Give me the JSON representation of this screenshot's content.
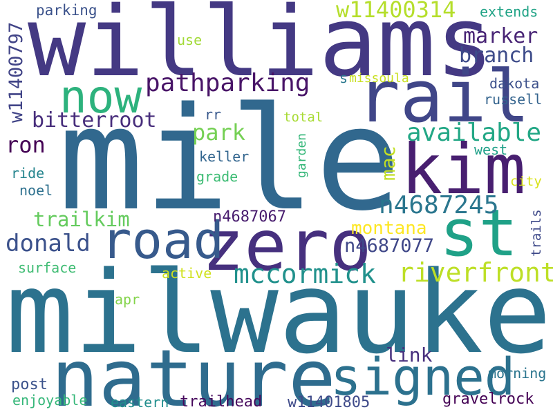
{
  "words": [
    {
      "text": "mile",
      "color": "#31688e"
    },
    {
      "text": "milwaukee",
      "color": "#2c728e"
    },
    {
      "text": "williams",
      "color": "#443983"
    },
    {
      "text": "nature",
      "color": "#2f6c8e"
    },
    {
      "text": "zero",
      "color": "#46307e"
    },
    {
      "text": "kim",
      "color": "#481f70"
    },
    {
      "text": "rail",
      "color": "#404688"
    },
    {
      "text": "st",
      "color": "#1fa187"
    },
    {
      "text": "road",
      "color": "#375a8c"
    },
    {
      "text": "signed",
      "color": "#2c718e"
    },
    {
      "text": "now",
      "color": "#2db27d"
    },
    {
      "text": "riverfront",
      "color": "#bddf26"
    },
    {
      "text": "mccormick",
      "color": "#21918c"
    },
    {
      "text": "w11400314",
      "color": "#b5de2b"
    },
    {
      "text": "pathparking",
      "color": "#481467"
    },
    {
      "text": "available",
      "color": "#22a785"
    },
    {
      "text": "n4687245",
      "color": "#2a768e"
    },
    {
      "text": "marker",
      "color": "#482475"
    },
    {
      "text": "branch",
      "color": "#3e4c8a"
    },
    {
      "text": "bitterroot",
      "color": "#472d7b"
    },
    {
      "text": "park",
      "color": "#75d054"
    },
    {
      "text": "ron",
      "color": "#440154"
    },
    {
      "text": "mac",
      "color": "#c2df23"
    },
    {
      "text": "w11400797",
      "color": "#414487"
    },
    {
      "text": "donald",
      "color": "#3b518b"
    },
    {
      "text": "trailkim",
      "color": "#65cb5e"
    },
    {
      "text": "montana",
      "color": "#fde725"
    },
    {
      "text": "n4687077",
      "color": "#3f4788"
    },
    {
      "text": "link",
      "color": "#472f7d"
    },
    {
      "text": "parking",
      "color": "#3b528b"
    },
    {
      "text": "extends",
      "color": "#20a386"
    },
    {
      "text": "use",
      "color": "#a2da37"
    },
    {
      "text": "s",
      "color": "#2a788e"
    },
    {
      "text": "missoula",
      "color": "#c8e020"
    },
    {
      "text": "dakota",
      "color": "#3c508b"
    },
    {
      "text": "russell",
      "color": "#33638d"
    },
    {
      "text": "rr",
      "color": "#38588c"
    },
    {
      "text": "total",
      "color": "#a8db34"
    },
    {
      "text": "keller",
      "color": "#32658e"
    },
    {
      "text": "west",
      "color": "#1fa088"
    },
    {
      "text": "garden",
      "color": "#35b779"
    },
    {
      "text": "grade",
      "color": "#3dbc74"
    },
    {
      "text": "city",
      "color": "#d8e219"
    },
    {
      "text": "ride",
      "color": "#25858e"
    },
    {
      "text": "noel",
      "color": "#2d708e"
    },
    {
      "text": "n4687067",
      "color": "#481c6e"
    },
    {
      "text": "trails",
      "color": "#3e4989"
    },
    {
      "text": "surface",
      "color": "#3fbc73"
    },
    {
      "text": "active",
      "color": "#d0e11c"
    },
    {
      "text": "apr",
      "color": "#84d44b"
    },
    {
      "text": "post",
      "color": "#3b528b"
    },
    {
      "text": "morning",
      "color": "#2b758e"
    },
    {
      "text": "enjoyable",
      "color": "#35b779"
    },
    {
      "text": "eastern",
      "color": "#218e8d"
    },
    {
      "text": "trailhead",
      "color": "#46085c"
    },
    {
      "text": "w11401805",
      "color": "#3e4a89"
    },
    {
      "text": "gravelrock",
      "color": "#440154"
    }
  ]
}
